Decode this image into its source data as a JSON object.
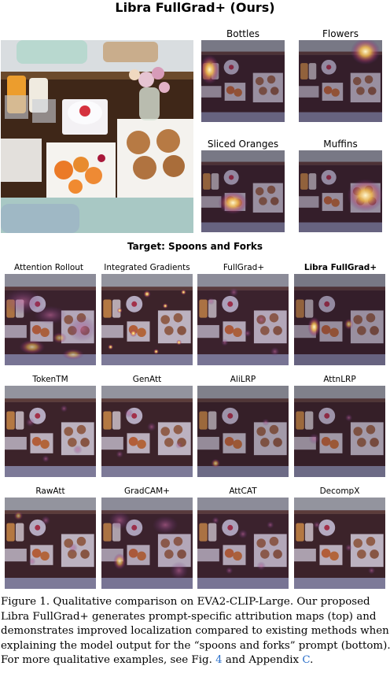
{
  "title": "Libra FullGrad+ (Ours)",
  "top_labels": [
    "Bottles",
    "Flowers",
    "Sliced Oranges",
    "Muffins"
  ],
  "target_label": "Target: Spoons and Forks",
  "methods": [
    "Attention Rollout",
    "Integrated Gradients",
    "FullGrad+",
    "Libra FullGrad+",
    "TokenTM",
    "GenAtt",
    "AliLRP",
    "AttnLRP",
    "RawAtt",
    "GradCAM+",
    "AttCAT",
    "DecompX"
  ],
  "caption": {
    "line1": "Figure 1. Qualitative comparison on EVA2-CLIP-Large. Our proposed",
    "line2": "Libra FullGrad+ generates prompt-specific attribution maps (top) and",
    "line3": "demonstrates improved localization compared to existing methods when",
    "line4": "explaining the model output for the “spoons and forks” prompt (bottom).",
    "line5_pre": "For more qualitative examples, see Fig. ",
    "fig_ref": "4",
    "line5_mid": " and Appendix ",
    "app_ref": "C",
    "line5_end": "."
  },
  "colors": {
    "link": "#2a6fc9",
    "heat": "#f3c05a",
    "heat_core": "#fff6c8"
  }
}
